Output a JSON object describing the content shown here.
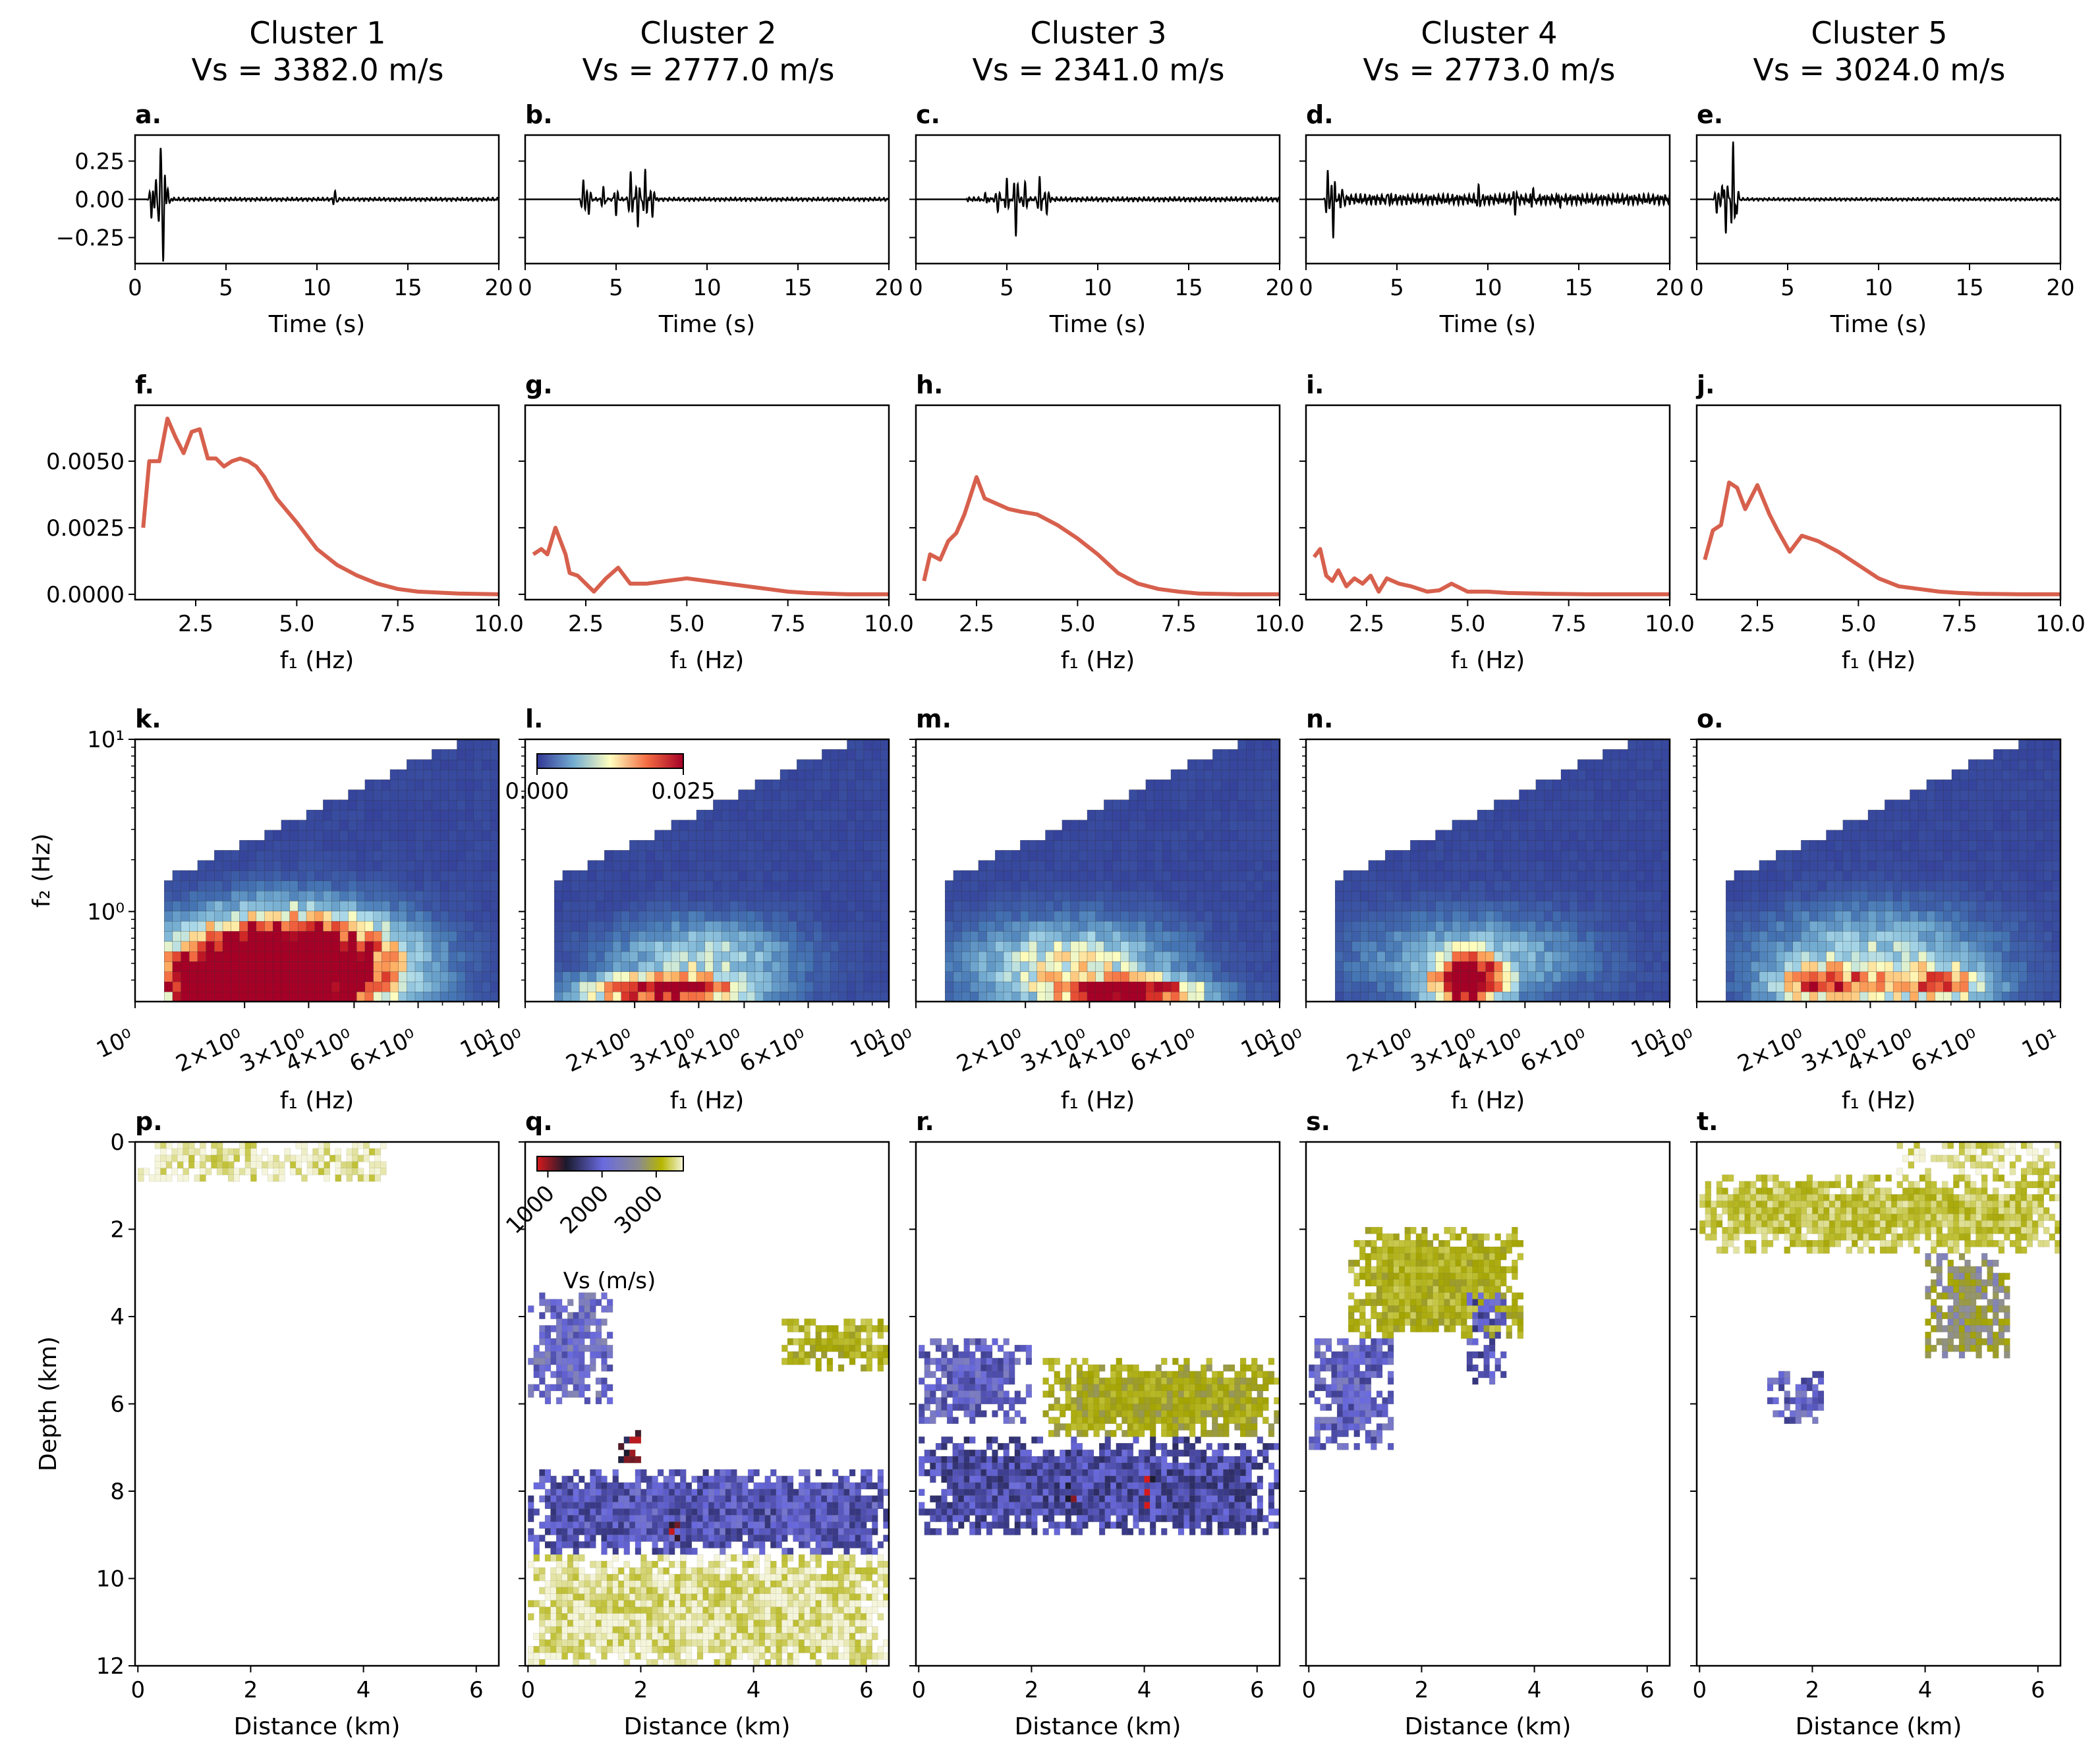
{
  "figure": {
    "columns": [
      {
        "cluster": "Cluster 1",
        "vs": "Vs =  3382.0 m/s"
      },
      {
        "cluster": "Cluster 2",
        "vs": "Vs =  2777.0 m/s"
      },
      {
        "cluster": "Cluster 3",
        "vs": "Vs =  2341.0 m/s"
      },
      {
        "cluster": "Cluster 4",
        "vs": "Vs =  2773.0 m/s"
      },
      {
        "cluster": "Cluster 5",
        "vs": "Vs =  3024.0 m/s"
      }
    ],
    "panel_letters": [
      "a.",
      "b.",
      "c.",
      "d.",
      "e.",
      "f.",
      "g.",
      "h.",
      "i.",
      "j.",
      "k.",
      "l.",
      "m.",
      "n.",
      "o.",
      "p.",
      "q.",
      "r.",
      "s.",
      "t."
    ],
    "colors": {
      "axis": "#000000",
      "trace": "#000000",
      "spectrum": "#d7604d",
      "grid_none": "#ffffff"
    }
  },
  "chart_data": [
    {
      "row": "waveform",
      "type": "line",
      "xlabel": "Time (s)",
      "ylabel": "",
      "xlim": [
        0,
        20
      ],
      "ylim": [
        -0.42,
        0.42
      ],
      "xticks": [
        0,
        5,
        10,
        15,
        20
      ],
      "xtick_labels": [
        "0",
        "5",
        "10",
        "15",
        "20"
      ],
      "yticks": [
        0.25,
        0.0,
        -0.25
      ],
      "ytick_labels": [
        "0.25",
        "0.00",
        "−0.25"
      ],
      "series": [
        {
          "events": [
            {
              "t": 0.9,
              "a": -0.12
            },
            {
              "t": 1.15,
              "a": 0.13
            },
            {
              "t": 1.4,
              "a": 0.3
            },
            {
              "t": 1.55,
              "a": -0.37
            },
            {
              "t": 1.8,
              "a": 0.08
            },
            {
              "t": 11.0,
              "a": 0.05
            }
          ],
          "noise": 0.012,
          "noise_start": 0.8
        },
        {
          "events": [
            {
              "t": 3.2,
              "a": 0.13
            },
            {
              "t": 3.5,
              "a": -0.1
            },
            {
              "t": 4.3,
              "a": 0.08
            },
            {
              "t": 5.0,
              "a": -0.1
            },
            {
              "t": 5.8,
              "a": 0.18
            },
            {
              "t": 6.2,
              "a": -0.18
            },
            {
              "t": 6.6,
              "a": 0.2
            },
            {
              "t": 7.0,
              "a": -0.13
            }
          ],
          "noise": 0.012,
          "noise_start": 3.0
        },
        {
          "events": [
            {
              "t": 3.8,
              "a": 0.05
            },
            {
              "t": 4.5,
              "a": -0.08
            },
            {
              "t": 5.0,
              "a": 0.14
            },
            {
              "t": 5.5,
              "a": -0.24
            },
            {
              "t": 6.0,
              "a": 0.12
            },
            {
              "t": 6.8,
              "a": 0.14
            },
            {
              "t": 7.2,
              "a": -0.1
            }
          ],
          "noise": 0.015,
          "noise_start": 2.8
        },
        {
          "events": [
            {
              "t": 1.2,
              "a": 0.2
            },
            {
              "t": 1.5,
              "a": -0.24
            },
            {
              "t": 2.0,
              "a": 0.06
            },
            {
              "t": 4.5,
              "a": 0.05
            },
            {
              "t": 9.5,
              "a": 0.07
            },
            {
              "t": 11.5,
              "a": -0.07
            },
            {
              "t": 12.5,
              "a": 0.08
            },
            {
              "t": 14.0,
              "a": -0.06
            }
          ],
          "noise": 0.035,
          "noise_start": 1.1
        },
        {
          "events": [
            {
              "t": 1.1,
              "a": -0.1
            },
            {
              "t": 1.4,
              "a": 0.09
            },
            {
              "t": 1.6,
              "a": -0.23
            },
            {
              "t": 2.0,
              "a": 0.38
            },
            {
              "t": 2.2,
              "a": -0.1
            }
          ],
          "noise": 0.01,
          "noise_start": 1.0
        }
      ]
    },
    {
      "row": "spectrum",
      "type": "line",
      "xlabel": "f₁ (Hz)",
      "ylabel": "",
      "xlim": [
        1.0,
        10.0
      ],
      "ylim": [
        -0.0002,
        0.0071
      ],
      "xticks": [
        2.5,
        5.0,
        7.5,
        10.0
      ],
      "xtick_labels": [
        "2.5",
        "5.0",
        "7.5",
        "10.0"
      ],
      "yticks": [
        0.0,
        0.0025,
        0.005
      ],
      "ytick_labels": [
        "0.0000",
        "0.0025",
        "0.0050"
      ],
      "series": [
        {
          "x": [
            1.2,
            1.35,
            1.6,
            1.8,
            2.0,
            2.2,
            2.4,
            2.6,
            2.8,
            3.0,
            3.2,
            3.4,
            3.6,
            3.8,
            4.0,
            4.2,
            4.5,
            5.0,
            5.5,
            6.0,
            6.5,
            7.0,
            7.5,
            8.0,
            9.0,
            10.0
          ],
          "y": [
            0.0025,
            0.005,
            0.005,
            0.0066,
            0.0059,
            0.0053,
            0.0061,
            0.0062,
            0.0051,
            0.0051,
            0.0048,
            0.005,
            0.0051,
            0.005,
            0.0048,
            0.0044,
            0.0036,
            0.0027,
            0.0017,
            0.0011,
            0.0007,
            0.0004,
            0.0002,
            0.0001,
            3e-05,
            0.0
          ]
        },
        {
          "x": [
            1.2,
            1.4,
            1.55,
            1.75,
            2.0,
            2.1,
            2.3,
            2.5,
            2.7,
            3.0,
            3.3,
            3.6,
            4.0,
            4.5,
            5.0,
            5.5,
            6.0,
            6.5,
            7.0,
            7.5,
            8.0,
            9.0,
            10.0
          ],
          "y": [
            0.0015,
            0.0017,
            0.0015,
            0.0025,
            0.0015,
            0.0008,
            0.0007,
            0.0004,
            0.0001,
            0.0006,
            0.001,
            0.0004,
            0.0004,
            0.0005,
            0.0006,
            0.0005,
            0.0004,
            0.0003,
            0.0002,
            0.0001,
            5e-05,
            0.0,
            0.0
          ]
        },
        {
          "x": [
            1.2,
            1.35,
            1.6,
            1.8,
            2.0,
            2.2,
            2.5,
            2.7,
            3.0,
            3.3,
            3.6,
            4.0,
            4.5,
            5.0,
            5.5,
            6.0,
            6.5,
            7.0,
            7.5,
            8.0,
            9.0,
            10.0
          ],
          "y": [
            0.0005,
            0.0015,
            0.0013,
            0.002,
            0.0023,
            0.003,
            0.0044,
            0.0036,
            0.0034,
            0.0032,
            0.0031,
            0.003,
            0.0026,
            0.0021,
            0.0015,
            0.0008,
            0.0004,
            0.0002,
            0.0001,
            3e-05,
            0.0,
            0.0
          ]
        },
        {
          "x": [
            1.2,
            1.35,
            1.5,
            1.65,
            1.8,
            2.0,
            2.2,
            2.4,
            2.6,
            2.8,
            3.0,
            3.3,
            3.6,
            4.0,
            4.3,
            4.6,
            5.0,
            5.5,
            6.0,
            7.0,
            8.0,
            9.0,
            10.0
          ],
          "y": [
            0.0014,
            0.0017,
            0.0007,
            0.0005,
            0.0009,
            0.0003,
            0.0006,
            0.0004,
            0.0007,
            0.0001,
            0.0006,
            0.0004,
            0.0003,
            0.0001,
            0.00015,
            0.0004,
            0.0001,
            0.0001,
            5e-05,
            2e-05,
            0.0,
            0.0,
            0.0
          ]
        },
        {
          "x": [
            1.2,
            1.4,
            1.6,
            1.8,
            2.0,
            2.2,
            2.5,
            2.8,
            3.0,
            3.3,
            3.6,
            4.0,
            4.5,
            5.0,
            5.5,
            6.0,
            6.5,
            7.0,
            7.5,
            8.0,
            9.0,
            10.0
          ],
          "y": [
            0.0013,
            0.0024,
            0.0026,
            0.0042,
            0.004,
            0.0032,
            0.0041,
            0.003,
            0.0024,
            0.0016,
            0.0022,
            0.002,
            0.0016,
            0.0011,
            0.0006,
            0.0003,
            0.0002,
            0.0001,
            5e-05,
            2e-05,
            0.0,
            0.0
          ]
        }
      ]
    },
    {
      "row": "bispectrum",
      "type": "heatmap",
      "xlabel": "f₁ (Hz)",
      "ylabel": "f₂ (Hz)",
      "xscale": "log",
      "yscale": "log",
      "xlim": [
        1.0,
        10.0
      ],
      "ylim": [
        0.3,
        10.0
      ],
      "xticks": [
        1,
        2,
        3,
        4,
        6,
        10
      ],
      "xtick_labels": [
        "10⁰",
        "2×10⁰",
        "3×10⁰",
        "4×10⁰",
        "6×10⁰",
        "10¹"
      ],
      "yticks": [
        1,
        10
      ],
      "ytick_labels": [
        "10⁰",
        "10¹"
      ],
      "colorbar": {
        "ticks": [
          "0.000",
          "0.025"
        ],
        "vmin": 0.0,
        "vmax": 0.025,
        "location": "upper-left"
      },
      "blobs": [
        [
          {
            "f1": 2.6,
            "f2": 0.45,
            "w": 0.45,
            "h": 0.45,
            "v": 0.05
          },
          {
            "f1": 1.6,
            "f2": 0.36,
            "w": 0.3,
            "h": 0.3,
            "v": 0.02
          }
        ],
        [
          {
            "f1": 2.3,
            "f2": 0.32,
            "w": 0.35,
            "h": 0.15,
            "v": 0.025
          },
          {
            "f1": 3.0,
            "f2": 0.5,
            "w": 0.4,
            "h": 0.35,
            "v": 0.009
          }
        ],
        [
          {
            "f1": 3.8,
            "f2": 0.32,
            "w": 0.3,
            "h": 0.12,
            "v": 0.03
          },
          {
            "f1": 2.6,
            "f2": 0.45,
            "w": 0.45,
            "h": 0.4,
            "v": 0.012
          }
        ],
        [
          {
            "f1": 2.7,
            "f2": 0.36,
            "w": 0.15,
            "h": 0.25,
            "v": 0.03
          },
          {
            "f1": 2.8,
            "f2": 0.5,
            "w": 0.5,
            "h": 0.4,
            "v": 0.007
          }
        ],
        [
          {
            "f1": 2.2,
            "f2": 0.35,
            "w": 0.25,
            "h": 0.2,
            "v": 0.018
          },
          {
            "f1": 4.5,
            "f2": 0.35,
            "w": 0.25,
            "h": 0.2,
            "v": 0.015
          },
          {
            "f1": 3.0,
            "f2": 0.55,
            "w": 0.5,
            "h": 0.4,
            "v": 0.008
          }
        ]
      ]
    },
    {
      "row": "velocity_section",
      "type": "heatmap",
      "xlabel": "Distance (km)",
      "ylabel": "Depth (km)",
      "xlim": [
        -0.05,
        6.4
      ],
      "ylim": [
        12,
        0
      ],
      "xticks": [
        0,
        2,
        4,
        6
      ],
      "xtick_labels": [
        "0",
        "2",
        "4",
        "6"
      ],
      "yticks": [
        0,
        2,
        4,
        6,
        8,
        10,
        12
      ],
      "ytick_labels": [
        "0",
        "2",
        "4",
        "6",
        "8",
        "10",
        "12"
      ],
      "colorbar": {
        "label": "Vs (m/s)",
        "ticks": [
          "1000",
          "2000",
          "3000"
        ],
        "vmin": 800,
        "vmax": 3500,
        "location": "upper-left"
      },
      "sections": [
        {
          "regions": [
            {
              "x0": 0,
              "x1": 4.4,
              "z0": 0,
              "z1": 0.9,
              "v": 3380
            }
          ]
        },
        {
          "regions": [
            {
              "x0": 0,
              "x1": 6.4,
              "z0": 7.5,
              "z1": 9.5,
              "v": 1800
            },
            {
              "x0": 0,
              "x1": 6.4,
              "z0": 9.5,
              "z1": 12,
              "v": 3350
            },
            {
              "x0": 0,
              "x1": 1.5,
              "z0": 3.5,
              "z1": 6,
              "v": 2000
            },
            {
              "x0": 4.5,
              "x1": 6.4,
              "z0": 4.0,
              "z1": 5.2,
              "v": 2900
            },
            {
              "x0": 1.6,
              "x1": 2.0,
              "z0": 6.6,
              "z1": 7.4,
              "v": 1100
            },
            {
              "x0": 2.5,
              "x1": 2.7,
              "z0": 8.5,
              "z1": 9.2,
              "v": 1100
            }
          ]
        },
        {
          "regions": [
            {
              "x0": 0,
              "x1": 6.4,
              "z0": 6.8,
              "z1": 9.0,
              "v": 1700
            },
            {
              "x0": 2.2,
              "x1": 6.4,
              "z0": 5.0,
              "z1": 6.8,
              "v": 2800
            },
            {
              "x0": 0,
              "x1": 2.0,
              "z0": 4.5,
              "z1": 6.5,
              "v": 1900
            },
            {
              "x0": 2.4,
              "x1": 2.8,
              "z0": 7.8,
              "z1": 8.6,
              "v": 1000
            },
            {
              "x0": 4.0,
              "x1": 4.2,
              "z0": 7.6,
              "z1": 8.4,
              "v": 900
            }
          ]
        },
        {
          "regions": [
            {
              "x0": 0.7,
              "x1": 3.8,
              "z0": 2.0,
              "z1": 4.5,
              "v": 2900
            },
            {
              "x0": 0,
              "x1": 1.5,
              "z0": 4.5,
              "z1": 7.0,
              "v": 1900
            },
            {
              "x0": 2.8,
              "x1": 3.5,
              "z0": 3.5,
              "z1": 5.5,
              "v": 1800
            }
          ]
        },
        {
          "regions": [
            {
              "x0": 0,
              "x1": 6.4,
              "z0": 0.8,
              "z1": 2.5,
              "v": 3100
            },
            {
              "x0": 3.5,
              "x1": 6.4,
              "z0": 0,
              "z1": 0.8,
              "v": 3300
            },
            {
              "x0": 4.0,
              "x1": 5.5,
              "z0": 2.5,
              "z1": 5.0,
              "v": 2500
            },
            {
              "x0": 1.2,
              "x1": 2.2,
              "z0": 5.3,
              "z1": 6.5,
              "v": 1900
            }
          ]
        }
      ]
    }
  ]
}
